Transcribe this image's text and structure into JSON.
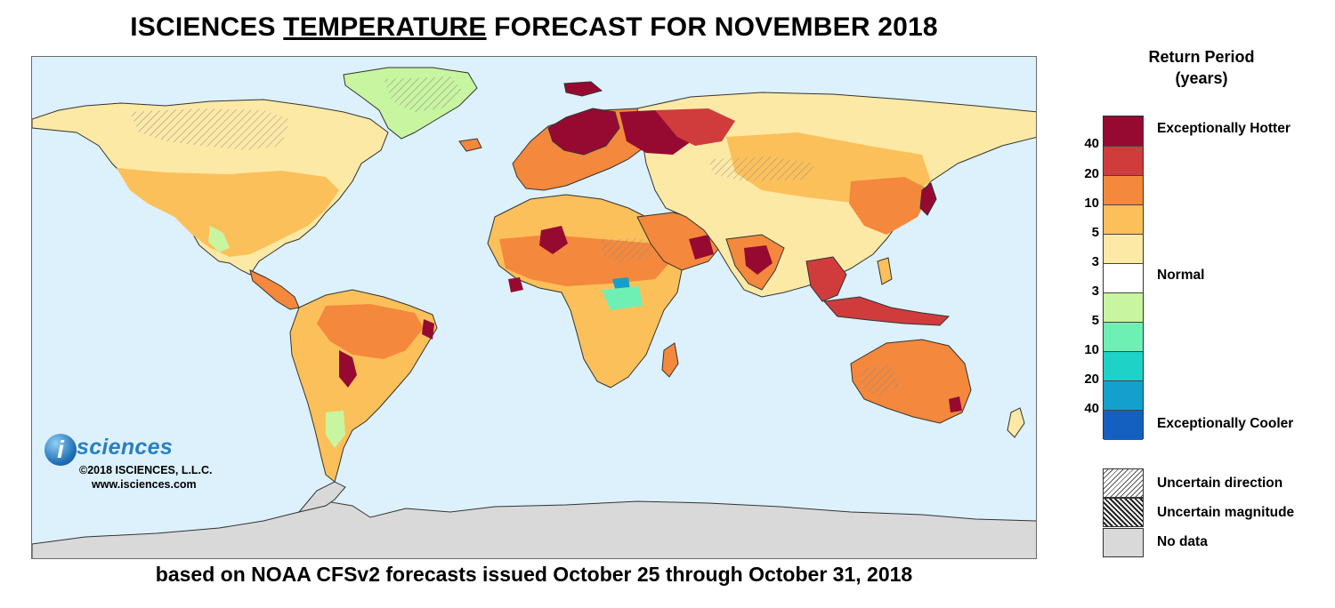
{
  "title": {
    "part1": "ISCIENCES ",
    "part2": "TEMPERATURE",
    "part3": " FORECAST FOR NOVEMBER 2018"
  },
  "subtitle": "based on NOAA CFSv2 forecasts issued October 25 through October 31, 2018",
  "brand": {
    "logo_letter": "i",
    "name": "sciences",
    "copyright": "©2018 ISCIENCES, L.L.C.",
    "website": "www.isciences.com"
  },
  "legend": {
    "title_line1": "Return Period",
    "title_line2": "(years)",
    "colors": [
      "#960a32",
      "#d03c3c",
      "#f4883c",
      "#fcc05a",
      "#fde9a6",
      "#ffffff",
      "#c8f5a0",
      "#6ef0b4",
      "#1ed2c8",
      "#14a0cc",
      "#1460c0"
    ],
    "ticks": [
      "40",
      "20",
      "10",
      "5",
      "3",
      "3",
      "5",
      "10",
      "20",
      "40"
    ],
    "label_hot": "Exceptionally Hotter",
    "label_normal": "Normal",
    "label_cool": "Exceptionally Cooler"
  },
  "key": {
    "uncertain_direction": "Uncertain direction",
    "uncertain_magnitude": "Uncertain magnitude",
    "no_data": "No data"
  },
  "map_colors": {
    "ocean": "#dcf1fc",
    "antarctica": "#d9d9d9",
    "border": "#333333"
  }
}
